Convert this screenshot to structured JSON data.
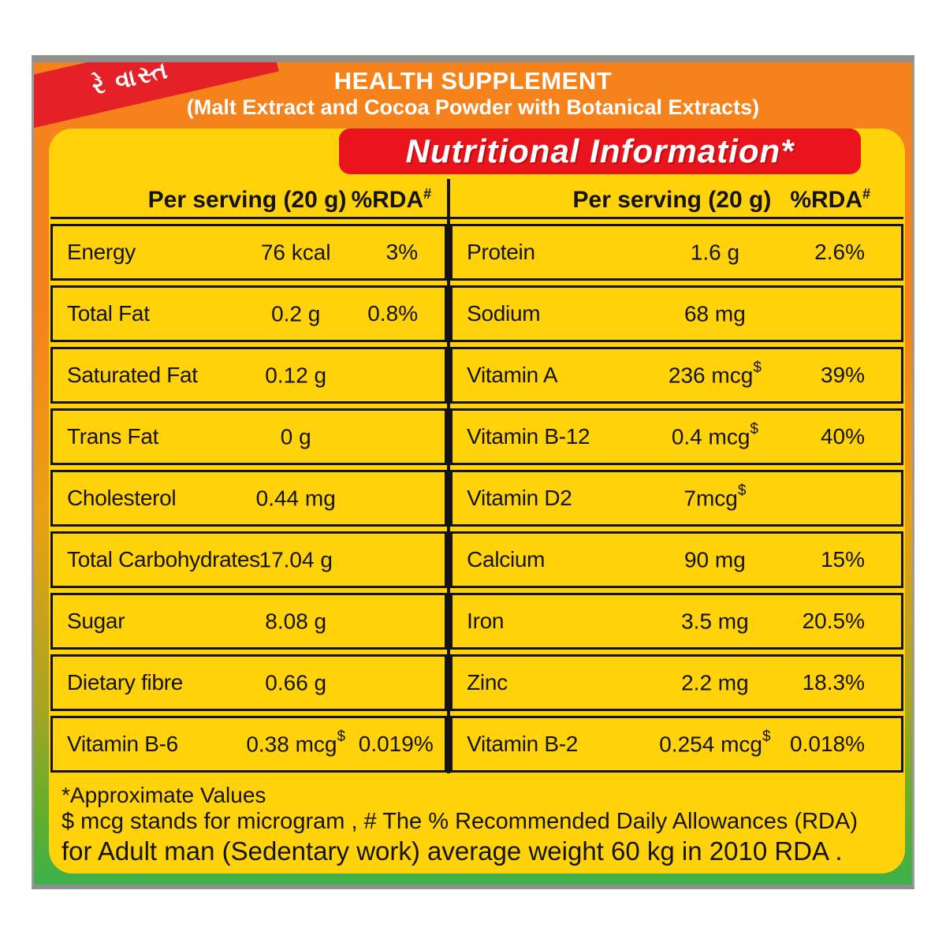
{
  "colors": {
    "orange": "#f5821b",
    "yellow": "#ffd20a",
    "banner_red": "#e9141c",
    "ribbon_red": "#e32127",
    "green": "#3db04a",
    "border_gray": "#8f8f8f",
    "text_black": "#141414",
    "text_white": "#ffffff"
  },
  "ribbon": {
    "text": "રે વાસ્ત"
  },
  "header": {
    "title": "HEALTH SUPPLEMENT",
    "subtitle": "(Malt Extract and Cocoa Powder with Botanical Extracts)"
  },
  "banner": {
    "title": "Nutritional Information*"
  },
  "table": {
    "left": {
      "serving_header": "Per serving (20 g)",
      "rda_header": "%RDA",
      "rda_header_sup": "#",
      "rows": [
        {
          "label": "Energy",
          "value": "76 kcal",
          "sup": "",
          "rda": "3%"
        },
        {
          "label": "Total Fat",
          "value": "0.2 g",
          "sup": "",
          "rda": "0.8%"
        },
        {
          "label": "Saturated Fat",
          "value": "0.12 g",
          "sup": "",
          "rda": ""
        },
        {
          "label": "Trans Fat",
          "value": "0 g",
          "sup": "",
          "rda": ""
        },
        {
          "label": "Cholesterol",
          "value": "0.44 mg",
          "sup": "",
          "rda": ""
        },
        {
          "label": "Total Carbohydrates",
          "value": "17.04 g",
          "sup": "",
          "rda": ""
        },
        {
          "label": "Sugar",
          "value": "8.08 g",
          "sup": "",
          "rda": ""
        },
        {
          "label": "Dietary fibre",
          "value": "0.66 g",
          "sup": "",
          "rda": ""
        },
        {
          "label": "Vitamin B-6",
          "value": "0.38 mcg",
          "sup": "$",
          "rda": "0.019%"
        }
      ]
    },
    "right": {
      "serving_header": "Per serving (20 g)",
      "rda_header": "%RDA",
      "rda_header_sup": "#",
      "rows": [
        {
          "label": "Protein",
          "value": "1.6 g",
          "sup": "",
          "rda": "2.6%"
        },
        {
          "label": "Sodium",
          "value": "68 mg",
          "sup": "",
          "rda": ""
        },
        {
          "label": "Vitamin A",
          "value": "236 mcg",
          "sup": "$",
          "rda": "39%"
        },
        {
          "label": "Vitamin B-12",
          "value": "0.4 mcg",
          "sup": "$",
          "rda": "40%"
        },
        {
          "label": "Vitamin D2",
          "value": "7mcg",
          "sup": "$",
          "rda": ""
        },
        {
          "label": "Calcium",
          "value": "90 mg",
          "sup": "",
          "rda": "15%"
        },
        {
          "label": "Iron",
          "value": "3.5 mg",
          "sup": "",
          "rda": "20.5%"
        },
        {
          "label": "Zinc",
          "value": "2.2 mg",
          "sup": "",
          "rda": "18.3%"
        },
        {
          "label": "Vitamin B-2",
          "value": "0.254 mcg",
          "sup": "$",
          "rda": "0.018%"
        }
      ]
    }
  },
  "footnotes": {
    "line1": "*Approximate Values",
    "line2": "$ mcg stands for microgram , # The % Recommended Daily Allowances (RDA)",
    "line3": "for Adult man (Sedentary work) average weight 60 kg in 2010 RDA ."
  }
}
